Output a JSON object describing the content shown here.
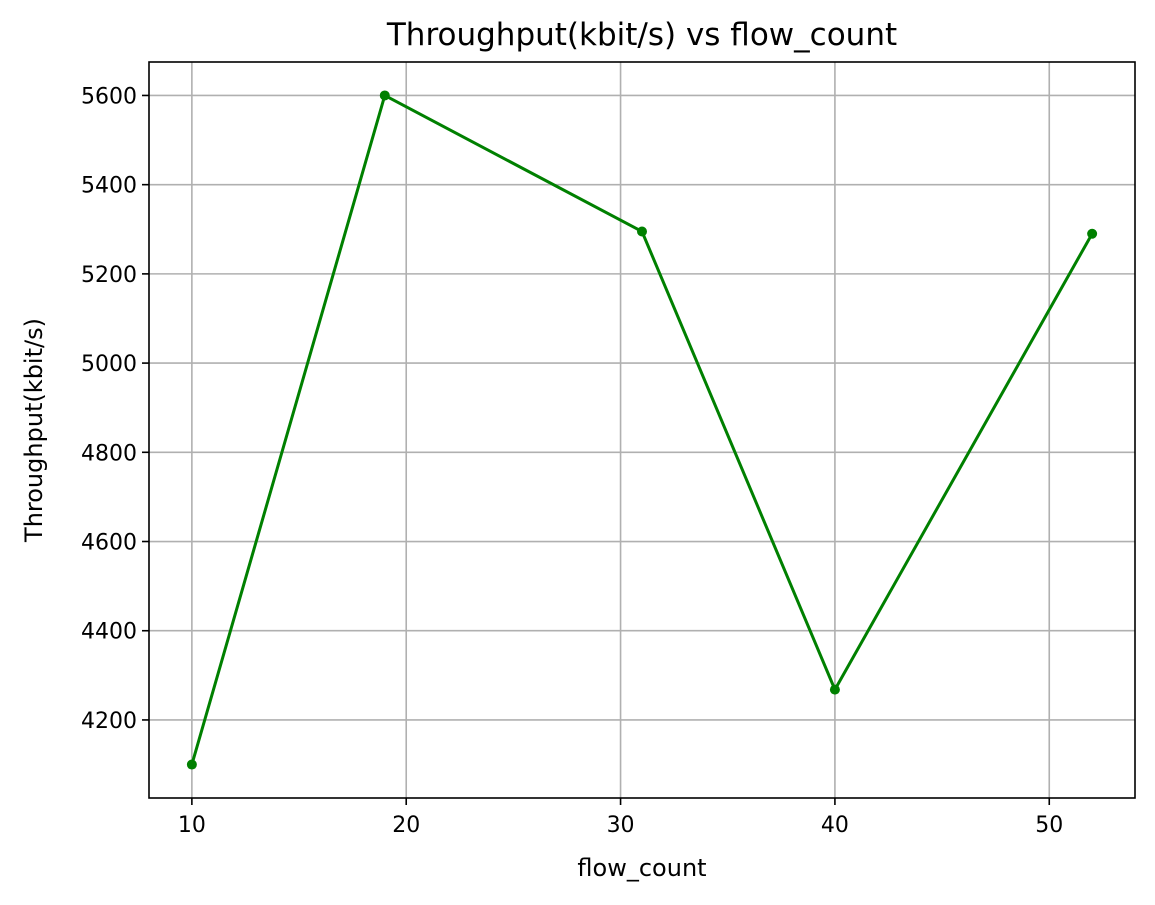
{
  "chart_data": {
    "type": "line",
    "title": "Throughput(kbit/s) vs flow_count",
    "xlabel": "flow_count",
    "ylabel": "Throughput(kbit/s)",
    "xlim": [
      8,
      54
    ],
    "ylim": [
      4025,
      5675
    ],
    "x_ticks": [
      10,
      20,
      30,
      40,
      50
    ],
    "y_ticks": [
      4200,
      4400,
      4600,
      4800,
      5000,
      5200,
      5400,
      5600
    ],
    "grid": true,
    "series": [
      {
        "color": "#008000",
        "marker": "circle",
        "x": [
          10,
          19,
          31,
          40,
          52
        ],
        "y": [
          4100,
          5600,
          5295,
          4268,
          5290
        ]
      }
    ]
  }
}
